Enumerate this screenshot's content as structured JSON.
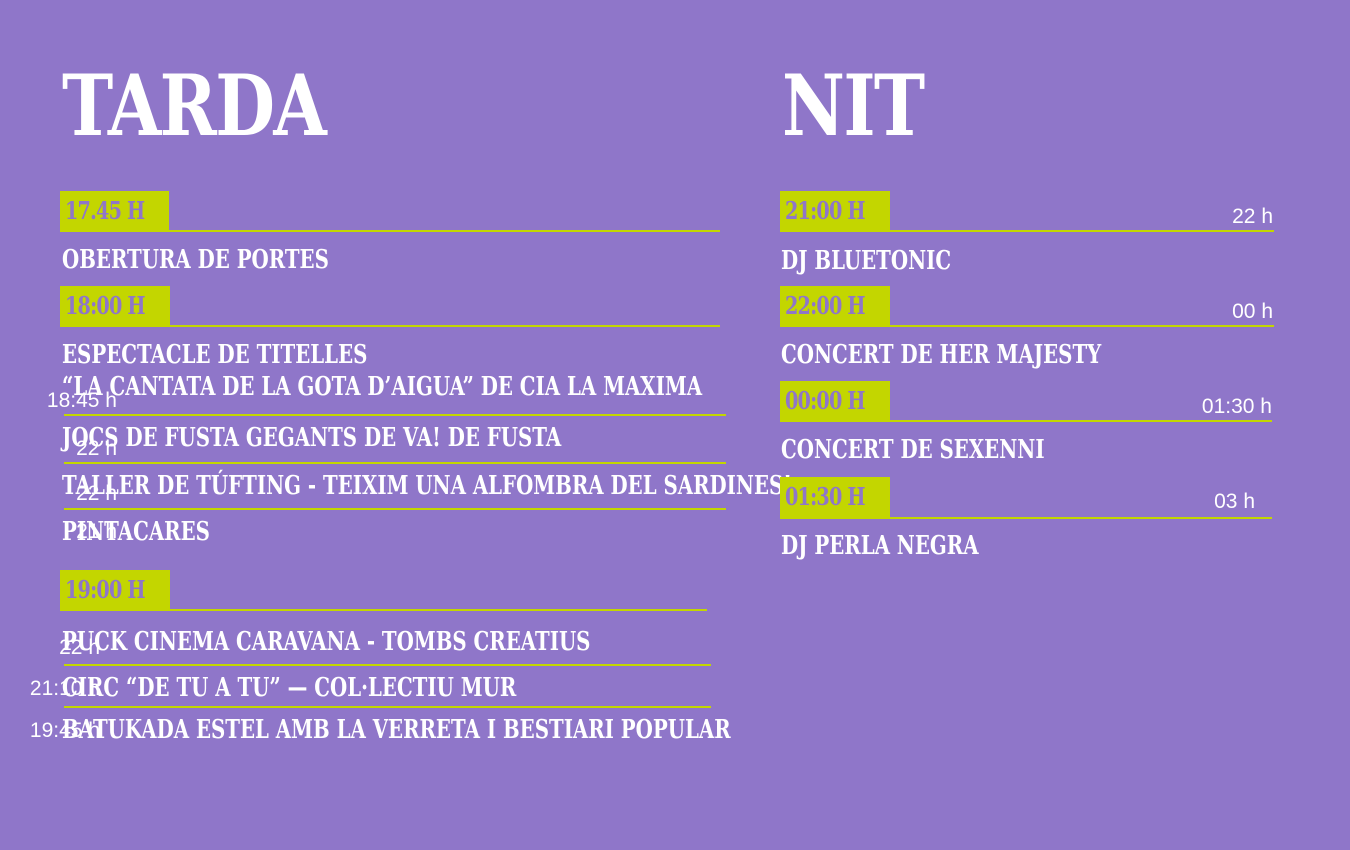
{
  "afternoon": {
    "heading": "TARDA",
    "slots": [
      {
        "time": "17.45 H",
        "events": [
          {
            "title": "OBERTURA DE PORTES",
            "end": ""
          }
        ]
      },
      {
        "time": "18:00 H",
        "events": [
          {
            "title": "ESPECTACLE DE TITELLES",
            "title2": "“LA CANTATA DE LA GOTA D’AIGUA” DE CIA LA MAXIMA",
            "end": "18:45 h"
          },
          {
            "title": "JOCS DE FUSTA GEGANTS DE VA! DE FUSTA",
            "end": "22 h"
          },
          {
            "title": "TALLER DE TÚFTING - TEIXIM UNA ALFOMBRA DEL SARDINES!",
            "end": "22 h"
          },
          {
            "title": "PINTACARES",
            "end": "21 h"
          }
        ]
      },
      {
        "time": "19:00 H",
        "events": [
          {
            "title": "PUCK CINEMA CARAVANA - TOMBS CREATIUS",
            "end": "22 h"
          },
          {
            "title": "CIRC “DE TU A TU” — COL·LECTIU MUR",
            "end": "21:10 h"
          },
          {
            "title": "BATUKADA ESTEL AMB LA VERRETA I BESTIARI POPULAR",
            "end": "19:45 h"
          }
        ]
      }
    ]
  },
  "night": {
    "heading": "NIT",
    "slots": [
      {
        "time": "21:00 H",
        "end": "22 h",
        "title": "DJ BLUETONIC"
      },
      {
        "time": "22:00 H",
        "end": "00 h",
        "title": "CONCERT DE HER MAJESTY"
      },
      {
        "time": "00:00 H",
        "end": "01:30 h",
        "title": "CONCERT DE SEXENNI"
      },
      {
        "time": "01:30 H",
        "end": "03 h",
        "title": "DJ PERLA NEGRA"
      }
    ]
  },
  "colors": {
    "background": "#8f76c9",
    "accent": "#c3d600",
    "text": "#ffffff"
  }
}
